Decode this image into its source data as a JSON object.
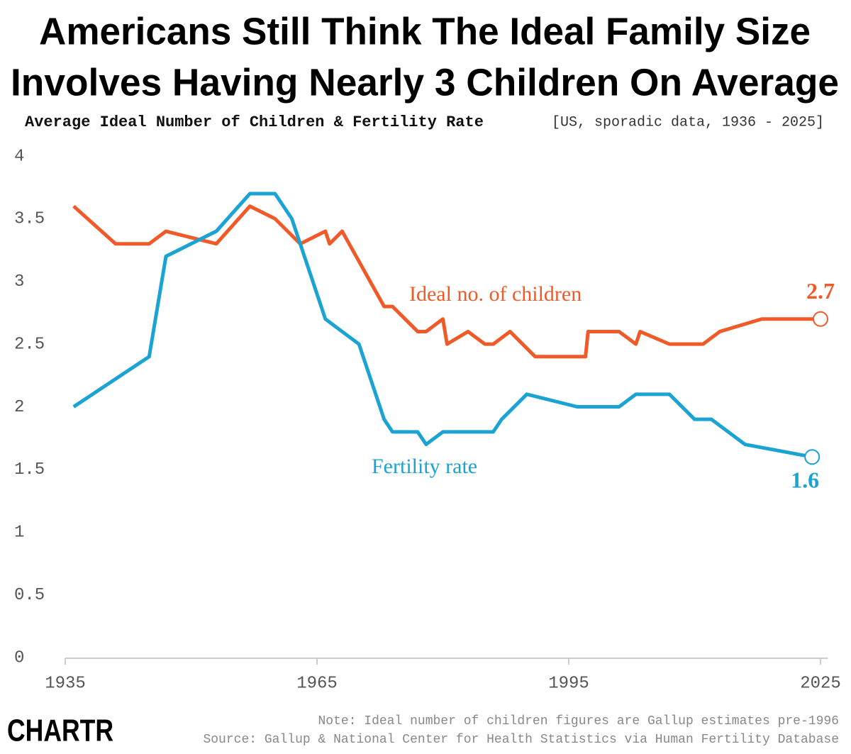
{
  "chart_data": {
    "type": "line",
    "title": [
      "Americans Still Think The Ideal Family Size",
      "Involves Having Nearly 3 Children On Average"
    ],
    "subtitle": "Average Ideal Number of Children & Fertility Rate",
    "subtitle_note": "[US, sporadic data, 1936 - 2025]",
    "series": [
      {
        "name": "Ideal no. of children",
        "color": "#f05a28",
        "x": [
          1936,
          1941,
          1945,
          1947,
          1953,
          1957,
          1960,
          1963,
          1966,
          1966.5,
          1968,
          1973,
          1974,
          1977,
          1978,
          1980,
          1980.5,
          1983,
          1985,
          1986,
          1988,
          1991,
          1996,
          1997,
          1997.3,
          2001,
          2003,
          2003.5,
          2007,
          2011,
          2013,
          2018,
          2023,
          2025
        ],
        "values": [
          3.6,
          3.3,
          3.3,
          3.4,
          3.3,
          3.6,
          3.5,
          3.3,
          3.4,
          3.3,
          3.4,
          2.8,
          2.8,
          2.6,
          2.6,
          2.7,
          2.5,
          2.6,
          2.5,
          2.5,
          2.6,
          2.4,
          2.4,
          2.4,
          2.6,
          2.6,
          2.5,
          2.6,
          2.5,
          2.5,
          2.6,
          2.7,
          2.7,
          2.7
        ]
      },
      {
        "name": "Fertility rate",
        "color": "#1ba3d3",
        "x": [
          1936,
          1945,
          1947,
          1953,
          1957,
          1960,
          1962,
          1965,
          1966,
          1968,
          1970,
          1973,
          1974,
          1977,
          1978,
          1980,
          1986,
          1987,
          1990,
          1996,
          2001,
          2003,
          2007,
          2010,
          2012,
          2016,
          2024
        ],
        "values": [
          2.0,
          2.4,
          3.2,
          3.4,
          3.7,
          3.7,
          3.5,
          2.9,
          2.7,
          2.6,
          2.5,
          1.9,
          1.8,
          1.8,
          1.7,
          1.8,
          1.8,
          1.9,
          2.1,
          2.0,
          2.0,
          2.1,
          2.1,
          1.9,
          1.9,
          1.7,
          1.6
        ]
      }
    ],
    "xlim": [
      1935,
      2025
    ],
    "xticks": [
      1935,
      1965,
      1995,
      2025
    ],
    "ylim": [
      0,
      4
    ],
    "yticks": [
      0,
      0.5,
      1,
      1.5,
      2,
      2.5,
      3,
      3.5,
      4
    ],
    "grid": false,
    "note": "Note: Ideal number of children figures are Gallup estimates pre-1996",
    "source": "Source: Gallup & National Center for Health Statistics via Human Fertility Database",
    "logo": "CHARTR"
  }
}
